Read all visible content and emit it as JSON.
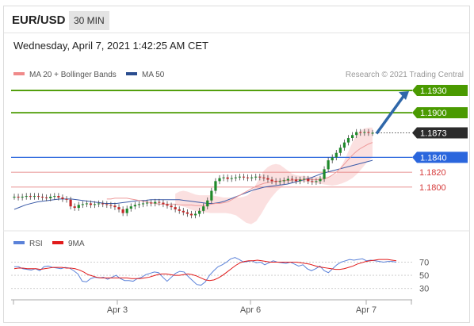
{
  "header": {
    "symbol": "EUR/USD",
    "timeframe": "30 MIN"
  },
  "datetime": "Wednesday, April 7, 2021 1:42:25 AM CET",
  "legend": {
    "bollinger_label": "MA 20 + Bollinger Bands",
    "ma50_label": "MA 50",
    "credit": "Research © 2021 Trading Central"
  },
  "colors": {
    "green": "#4a9a00",
    "blue": "#2a66dd",
    "red": "#d63a3a",
    "dark": "#2b2b2b",
    "band": "#f8c7c7",
    "arrow": "#2f67a9",
    "rsi": "#5b82d9",
    "ma9": "#e11b1b"
  },
  "chart_data": [
    {
      "type": "line",
      "title": "EUR/USD",
      "ylim": [
        1.1755,
        1.1945
      ],
      "x_ticks": [
        "Apr 3",
        "Apr 6",
        "Apr 7"
      ],
      "levels": [
        {
          "label": "1.1930",
          "value": 1.193,
          "style": "green-solid"
        },
        {
          "label": "1.1900",
          "value": 1.19,
          "style": "green-solid"
        },
        {
          "label": "1.1873",
          "value": 1.1873,
          "style": "dark-dotted"
        },
        {
          "label": "1.1840",
          "value": 1.184,
          "style": "blue-solid"
        },
        {
          "label": "1.1820",
          "value": 1.182,
          "style": "red-thin"
        },
        {
          "label": "1.1800",
          "value": 1.18,
          "style": "red-thin"
        }
      ],
      "price": [
        1.1787,
        1.1786,
        1.1787,
        1.1788,
        1.1787,
        1.1788,
        1.1787,
        1.1786,
        1.1785,
        1.1787,
        1.1788,
        1.1786,
        1.1784,
        1.1783,
        1.1774,
        1.1772,
        1.1776,
        1.1777,
        1.1778,
        1.1776,
        1.1777,
        1.1778,
        1.1777,
        1.1776,
        1.1775,
        1.1773,
        1.177,
        1.1765,
        1.1771,
        1.1774,
        1.1776,
        1.1777,
        1.1778,
        1.1779,
        1.1778,
        1.178,
        1.1779,
        1.1777,
        1.1775,
        1.1773,
        1.177,
        1.1768,
        1.1766,
        1.1764,
        1.1762,
        1.1764,
        1.1768,
        1.1774,
        1.1782,
        1.1795,
        1.1808,
        1.1812,
        1.1813,
        1.1811,
        1.1812,
        1.1813,
        1.1814,
        1.1813,
        1.1812,
        1.1813,
        1.1814,
        1.1813,
        1.1812,
        1.181,
        1.1808,
        1.1807,
        1.1808,
        1.1809,
        1.1811,
        1.181,
        1.1808,
        1.181,
        1.1811,
        1.1808,
        1.1807,
        1.1808,
        1.1811,
        1.1824,
        1.1836,
        1.184,
        1.1846,
        1.1853,
        1.186,
        1.1866,
        1.187,
        1.1874,
        1.1873,
        1.1874,
        1.1873,
        1.1873
      ],
      "ma20": [
        1.1784,
        1.1784,
        1.1785,
        1.1785,
        1.1785,
        1.1785,
        1.1784,
        1.1783,
        1.1782,
        1.1781,
        1.178,
        1.1779,
        1.1778,
        1.1777,
        1.1777,
        1.1777,
        1.1777,
        1.1777,
        1.1776,
        1.1776,
        1.1776,
        1.1776,
        1.1775,
        1.1775,
        1.1775,
        1.1776,
        1.1777,
        1.1778,
        1.1778,
        1.1779,
        1.178,
        1.1783,
        1.1786,
        1.1789,
        1.1792,
        1.1795,
        1.1798,
        1.1801,
        1.1803,
        1.1805,
        1.1806,
        1.1807,
        1.1808,
        1.1808,
        1.1809,
        1.1809,
        1.1809,
        1.181,
        1.181,
        1.181,
        1.181,
        1.181,
        1.181,
        1.181,
        1.1811,
        1.1813,
        1.1816,
        1.182,
        1.1825,
        1.1831,
        1.1837,
        1.1843,
        1.1848,
        1.1852,
        1.1855,
        1.1858,
        1.186
      ],
      "ma20_x0": 23,
      "bb_upper": [
        1.1791,
        1.1794,
        1.1795,
        1.1794,
        1.1792,
        1.179,
        1.1789,
        1.1789,
        1.1789,
        1.1789,
        1.1788,
        1.1787,
        1.1786,
        1.1786,
        1.1786,
        1.1786,
        1.1786,
        1.1787,
        1.1789,
        1.1794,
        1.1803,
        1.1813,
        1.1822,
        1.1827,
        1.183,
        1.1831,
        1.183,
        1.1826,
        1.1822,
        1.1818,
        1.1816,
        1.1815,
        1.1815,
        1.1814,
        1.1814,
        1.1814,
        1.1814,
        1.1814,
        1.1814,
        1.1815,
        1.1818,
        1.1826,
        1.1836,
        1.1848,
        1.186,
        1.187,
        1.1876,
        1.1879,
        1.188,
        1.188
      ],
      "bb_lower": [
        1.1777,
        1.1775,
        1.1773,
        1.177,
        1.1768,
        1.1767,
        1.1766,
        1.1765,
        1.1765,
        1.1765,
        1.1765,
        1.1764,
        1.1762,
        1.1757,
        1.1752,
        1.175,
        1.1754,
        1.1764,
        1.1776,
        1.1786,
        1.1794,
        1.18,
        1.1804,
        1.1806,
        1.1807,
        1.1807,
        1.1807,
        1.1806,
        1.1805,
        1.1804,
        1.1803,
        1.1802,
        1.1803,
        1.1805,
        1.1808,
        1.1812,
        1.1818,
        1.1826,
        1.1834,
        1.184
      ],
      "bb_x0": 40,
      "ma50": [
        1.177,
        1.1773,
        1.1776,
        1.1778,
        1.178,
        1.1781,
        1.1782,
        1.1783,
        1.1784,
        1.1784,
        1.1784,
        1.1783,
        1.1782,
        1.1781,
        1.178,
        1.1779,
        1.1778,
        1.1778,
        1.1778,
        1.1779,
        1.178,
        1.1781,
        1.1782,
        1.1782,
        1.1783,
        1.1783,
        1.1783,
        1.1783,
        1.1783,
        1.1783,
        1.1782,
        1.1781,
        1.178,
        1.1779,
        1.1778,
        1.1778,
        1.1779,
        1.1781,
        1.1784,
        1.1787,
        1.179,
        1.1793,
        1.1796,
        1.1798,
        1.18,
        1.1801,
        1.1802,
        1.1803,
        1.1804,
        1.1806,
        1.1808,
        1.181,
        1.1812,
        1.1815,
        1.1818,
        1.182,
        1.1822,
        1.1824,
        1.1826,
        1.1828,
        1.183,
        1.1832,
        1.1834,
        1.1836
      ],
      "forecast_arrow": {
        "from": 1.1873,
        "to": 1.193
      }
    },
    {
      "type": "line",
      "title": "RSI",
      "ylim": [
        20,
        85
      ],
      "y_ticks": [
        70,
        50,
        30
      ],
      "series": [
        {
          "name": "RSI",
          "values": [
            63,
            63,
            60,
            59,
            58,
            60,
            57,
            63,
            64,
            62,
            61,
            60,
            62,
            61,
            57,
            52,
            41,
            40,
            45,
            47,
            46,
            47,
            44,
            47,
            50,
            45,
            42,
            42,
            41,
            45,
            47,
            51,
            53,
            55,
            54,
            47,
            41,
            47,
            53,
            56,
            55,
            48,
            42,
            36,
            35,
            40,
            50,
            57,
            63,
            66,
            70,
            75,
            77,
            74,
            70,
            71,
            72,
            69,
            70,
            66,
            69,
            72,
            70,
            69,
            68,
            70,
            67,
            64,
            66,
            60,
            57,
            60,
            64,
            57,
            54,
            60,
            66,
            70,
            72,
            74,
            73,
            74,
            75,
            72,
            73,
            72,
            71,
            70,
            71,
            71,
            70
          ]
        },
        {
          "name": "9MA",
          "values": [
            60,
            61,
            61,
            60,
            60,
            60,
            59,
            60,
            61,
            62,
            62,
            62,
            61,
            61,
            60,
            58,
            55,
            51,
            49,
            47,
            46,
            46,
            46,
            46,
            46,
            46,
            46,
            45,
            45,
            45,
            46,
            47,
            49,
            51,
            52,
            52,
            51,
            50,
            50,
            51,
            52,
            51,
            49,
            46,
            43,
            42,
            43,
            46,
            50,
            55,
            60,
            65,
            69,
            71,
            72,
            72,
            73,
            72,
            71,
            70,
            70,
            70,
            70,
            70,
            70,
            70,
            69,
            68,
            67,
            65,
            63,
            62,
            61,
            60,
            59,
            59,
            60,
            62,
            64,
            67,
            69,
            71,
            72,
            73,
            74,
            74,
            74,
            73,
            72
          ]
        }
      ]
    }
  ]
}
